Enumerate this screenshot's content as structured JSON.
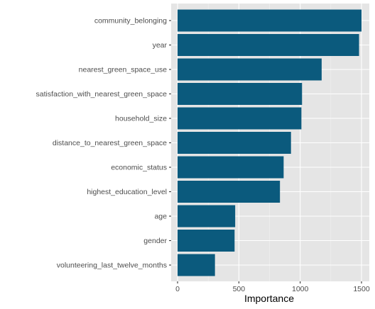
{
  "chart_data": {
    "type": "bar",
    "orientation": "horizontal",
    "categories": [
      "community_belonging",
      "year",
      "nearest_green_space_use",
      "satisfaction_with_nearest_green_space",
      "household_size",
      "distance_to_nearest_green_space",
      "economic_status",
      "highest_education_level",
      "age",
      "gender",
      "volunteering_last_twelve_months"
    ],
    "values": [
      1500,
      1480,
      1175,
      1015,
      1010,
      925,
      865,
      835,
      470,
      465,
      305
    ],
    "xlabel": "Importance",
    "ylabel": "",
    "xlim": [
      0,
      1500
    ],
    "x_ticks": [
      0,
      500,
      1000,
      1500
    ],
    "x_tick_labels": [
      "0",
      "500",
      "1000",
      "1500"
    ],
    "bar_color": "#0b5a7d",
    "panel_color": "#e5e5e5",
    "grid": true,
    "legend": "none"
  }
}
